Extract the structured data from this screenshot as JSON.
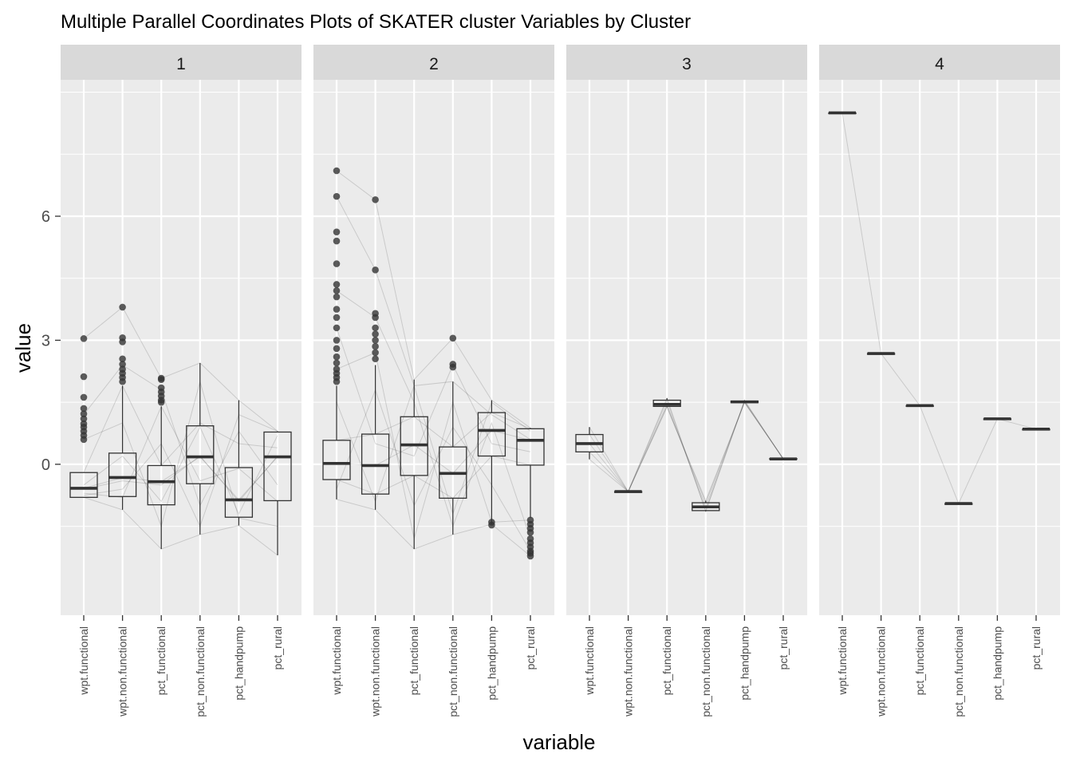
{
  "chart_data": {
    "type": "parallel-coordinates-boxplot",
    "title": "Multiple Parallel Coordinates Plots of SKATER cluster Variables by Cluster",
    "xlabel": "variable",
    "ylabel": "value",
    "ylim": [
      -3.65,
      9.3
    ],
    "yticks": [
      0,
      3,
      6
    ],
    "grid": true,
    "variables": [
      "wpt.functional",
      "wpt.non.functional",
      "pct_functional",
      "pct_non.functional",
      "pct_handpump",
      "pct_rural"
    ],
    "colors": {
      "panel": "#ebebeb",
      "strip": "#d9d9d9",
      "grid_major": "#ffffff",
      "box_line": "#333333",
      "point": "#333333",
      "line": "#000000"
    },
    "facets": [
      {
        "label": "1",
        "boxes": [
          {
            "q1": -0.8,
            "lower": -0.8,
            "median": -0.58,
            "q3": -0.2,
            "upper": -0.2,
            "outliers": [
              3.04,
              2.12,
              1.62,
              1.35,
              1.22,
              1.1,
              0.98,
              0.9,
              0.8,
              0.7,
              0.6
            ]
          },
          {
            "q1": -0.78,
            "lower": -1.1,
            "median": -0.32,
            "q3": 0.27,
            "upper": 1.9,
            "outliers": [
              3.8,
              3.06,
              2.96,
              2.55,
              2.42,
              2.3,
              2.2,
              2.1,
              2.0
            ]
          },
          {
            "q1": -0.98,
            "lower": -2.05,
            "median": -0.42,
            "q3": -0.03,
            "upper": 1.4,
            "outliers": [
              2.08,
              2.05,
              1.85,
              1.75,
              1.65,
              1.55,
              1.5
            ]
          },
          {
            "q1": -0.47,
            "lower": -1.7,
            "median": 0.18,
            "q3": 0.93,
            "upper": 2.45,
            "outliers": []
          },
          {
            "q1": -1.28,
            "lower": -1.48,
            "median": -0.86,
            "q3": -0.08,
            "upper": 1.55,
            "outliers": []
          },
          {
            "q1": -0.88,
            "lower": -2.2,
            "median": 0.18,
            "q3": 0.78,
            "upper": 0.8,
            "outliers": []
          }
        ],
        "lines": [
          [
            -0.8,
            -1.1,
            -2.05,
            -1.7,
            -1.48,
            -2.2
          ],
          [
            -0.6,
            -0.4,
            -0.5,
            0.2,
            -0.9,
            0.2
          ],
          [
            -0.5,
            0.2,
            -0.9,
            0.9,
            -1.2,
            0.7
          ],
          [
            3.04,
            3.8,
            2.08,
            2.45,
            1.55,
            0.8
          ],
          [
            -0.7,
            -0.8,
            1.4,
            -0.4,
            -0.1,
            -0.9
          ],
          [
            -0.2,
            1.9,
            -0.03,
            1.0,
            0.5,
            0.4
          ],
          [
            -0.58,
            -0.32,
            -0.42,
            0.18,
            -0.86,
            0.18
          ],
          [
            1.2,
            2.4,
            1.8,
            -1.0,
            0.8,
            -0.5
          ],
          [
            -0.75,
            -0.6,
            0.5,
            -1.5,
            1.2,
            0.8
          ],
          [
            0.6,
            1.0,
            -1.5,
            2.0,
            -1.3,
            -1.5
          ]
        ]
      },
      {
        "label": "2",
        "boxes": [
          {
            "q1": -0.37,
            "lower": -0.85,
            "median": 0.02,
            "q3": 0.58,
            "upper": 1.9,
            "outliers": [
              7.1,
              6.48,
              5.62,
              5.4,
              4.85,
              4.35,
              4.2,
              4.05,
              3.75,
              3.55,
              3.3,
              3.0,
              2.8,
              2.6,
              2.45,
              2.3,
              2.2,
              2.1,
              2.0
            ]
          },
          {
            "q1": -0.72,
            "lower": -1.1,
            "median": -0.03,
            "q3": 0.73,
            "upper": 2.4,
            "outliers": [
              6.4,
              4.7,
              3.65,
              3.55,
              3.3,
              3.15,
              3.0,
              2.85,
              2.7,
              2.55
            ]
          },
          {
            "q1": -0.27,
            "lower": -2.05,
            "median": 0.47,
            "q3": 1.15,
            "upper": 2.05,
            "outliers": []
          },
          {
            "q1": -0.82,
            "lower": -1.7,
            "median": -0.22,
            "q3": 0.42,
            "upper": 2.0,
            "outliers": [
              3.05,
              2.42,
              2.35
            ]
          },
          {
            "q1": 0.2,
            "lower": -1.45,
            "median": 0.82,
            "q3": 1.25,
            "upper": 1.55,
            "outliers": [
              -1.4,
              -1.47
            ]
          },
          {
            "q1": -0.02,
            "lower": -1.3,
            "median": 0.58,
            "q3": 0.86,
            "upper": 0.88,
            "outliers": [
              -1.35,
              -1.45,
              -1.55,
              -1.65,
              -1.8,
              -1.9,
              -2.0,
              -2.1,
              -2.15,
              -2.22
            ]
          }
        ],
        "lines": [
          [
            -0.85,
            -1.1,
            -2.05,
            -1.7,
            -1.45,
            -2.22
          ],
          [
            7.1,
            6.4,
            2.05,
            3.05,
            1.55,
            0.88
          ],
          [
            6.48,
            4.7,
            1.9,
            2.0,
            1.2,
            0.6
          ],
          [
            0.02,
            -0.03,
            0.47,
            -0.22,
            0.82,
            0.58
          ],
          [
            -0.37,
            -0.72,
            -0.27,
            -0.82,
            0.2,
            -0.02
          ],
          [
            0.58,
            0.73,
            1.15,
            0.42,
            1.25,
            0.86
          ],
          [
            4.2,
            3.55,
            1.5,
            -1.5,
            1.0,
            -1.8
          ],
          [
            2.3,
            2.7,
            -1.8,
            1.5,
            -1.4,
            -1.35
          ],
          [
            1.5,
            -0.9,
            1.9,
            -1.2,
            1.5,
            0.8
          ],
          [
            -0.6,
            1.8,
            -1.0,
            0.9,
            -0.5,
            -2.1
          ],
          [
            3.3,
            0.5,
            0.2,
            2.4,
            0.5,
            0.3
          ]
        ]
      },
      {
        "label": "3",
        "boxes": [
          {
            "q1": 0.3,
            "lower": 0.12,
            "median": 0.5,
            "q3": 0.72,
            "upper": 0.9,
            "outliers": []
          },
          {
            "q1": -0.66,
            "lower": -0.66,
            "median": -0.66,
            "q3": -0.66,
            "upper": -0.66,
            "outliers": []
          },
          {
            "q1": 1.4,
            "lower": 1.38,
            "median": 1.45,
            "q3": 1.55,
            "upper": 1.6,
            "outliers": []
          },
          {
            "q1": -1.12,
            "lower": -1.14,
            "median": -1.03,
            "q3": -0.93,
            "upper": -0.88,
            "outliers": []
          },
          {
            "q1": 1.49,
            "lower": 1.49,
            "median": 1.51,
            "q3": 1.53,
            "upper": 1.55,
            "outliers": []
          },
          {
            "q1": 0.12,
            "lower": 0.12,
            "median": 0.13,
            "q3": 0.14,
            "upper": 0.14,
            "outliers": []
          }
        ],
        "lines": [
          [
            0.12,
            -0.66,
            1.6,
            -1.14,
            1.53,
            0.13
          ],
          [
            0.5,
            -0.66,
            1.45,
            -1.03,
            1.51,
            0.13
          ],
          [
            0.9,
            -0.66,
            1.38,
            -0.88,
            1.49,
            0.14
          ],
          [
            0.3,
            -0.66,
            1.55,
            -1.12,
            1.55,
            0.12
          ],
          [
            0.72,
            -0.66,
            1.4,
            -0.93,
            1.5,
            0.13
          ]
        ]
      },
      {
        "label": "4",
        "boxes": [
          {
            "q1": 8.5,
            "lower": 8.5,
            "median": 8.5,
            "q3": 8.5,
            "upper": 8.5,
            "outliers": []
          },
          {
            "q1": 2.68,
            "lower": 2.68,
            "median": 2.68,
            "q3": 2.68,
            "upper": 2.68,
            "outliers": []
          },
          {
            "q1": 1.42,
            "lower": 1.42,
            "median": 1.42,
            "q3": 1.42,
            "upper": 1.42,
            "outliers": []
          },
          {
            "q1": -0.95,
            "lower": -0.95,
            "median": -0.95,
            "q3": -0.95,
            "upper": -0.95,
            "outliers": []
          },
          {
            "q1": 1.1,
            "lower": 1.1,
            "median": 1.1,
            "q3": 1.1,
            "upper": 1.1,
            "outliers": []
          },
          {
            "q1": 0.85,
            "lower": 0.85,
            "median": 0.85,
            "q3": 0.85,
            "upper": 0.85,
            "outliers": []
          }
        ],
        "lines": [
          [
            8.5,
            2.68,
            1.42,
            -0.95,
            1.1,
            0.85
          ]
        ]
      }
    ]
  }
}
